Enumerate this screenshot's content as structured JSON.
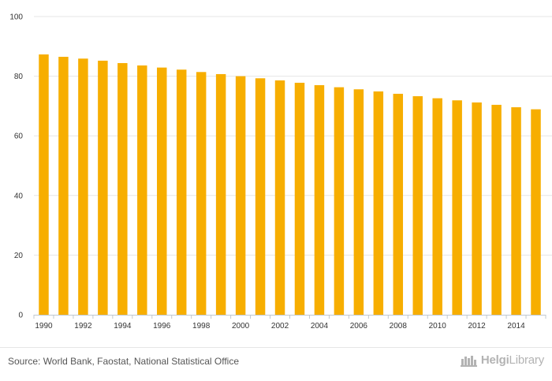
{
  "chart_data": {
    "type": "bar",
    "categories": [
      "1990",
      "1991",
      "1992",
      "1993",
      "1994",
      "1995",
      "1996",
      "1997",
      "1998",
      "1999",
      "2000",
      "2001",
      "2002",
      "2003",
      "2004",
      "2005",
      "2006",
      "2007",
      "2008",
      "2009",
      "2010",
      "2011",
      "2012",
      "2013",
      "2014",
      "2015"
    ],
    "x_tick_labels": [
      "1990",
      "1992",
      "1994",
      "1996",
      "1998",
      "2000",
      "2002",
      "2004",
      "2006",
      "2008",
      "2010",
      "2012",
      "2014"
    ],
    "values": [
      87.3,
      86.5,
      85.9,
      85.2,
      84.4,
      83.6,
      82.9,
      82.2,
      81.4,
      80.7,
      80.0,
      79.3,
      78.6,
      77.8,
      77.0,
      76.3,
      75.6,
      74.9,
      74.1,
      73.3,
      72.6,
      71.9,
      71.2,
      70.4,
      69.6,
      68.9
    ],
    "y_ticks": [
      0,
      20,
      40,
      60,
      80,
      100
    ],
    "ylim": [
      0,
      100
    ],
    "grid": true,
    "bar_color": "#f7ae00",
    "title": "",
    "xlabel": "",
    "ylabel": ""
  },
  "footer": {
    "source": "Source: World Bank, Faostat, National Statistical Office",
    "brand_prefix": "Helgi",
    "brand_suffix": "Library"
  }
}
